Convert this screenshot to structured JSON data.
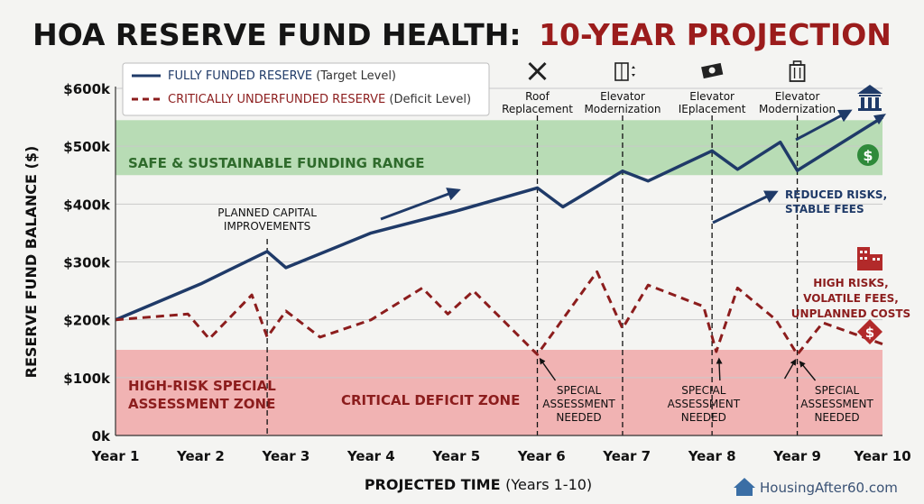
{
  "title": {
    "part1": "HOA RESERVE FUND HEALTH:",
    "part2": "10-YEAR PROJECTION",
    "color_part1": "#151515",
    "color_part2": "#9b1c1c"
  },
  "watermark": "HousingAfter60.com",
  "colors": {
    "fully_funded": "#1f3a68",
    "underfunded": "#8c1d1d",
    "safe_band": "#a9d6a5",
    "risk_band": "#f0a3a3",
    "safe_text": "#2f6b2c",
    "risk_text": "#8c1d1d",
    "annotation_blue": "#1f3a68",
    "grid": "#c9c9c9"
  },
  "chart_data": {
    "type": "line",
    "title": "HOA RESERVE FUND HEALTH: 10-YEAR PROJECTION",
    "xlabel": "PROJECTED TIME",
    "xlabel_suffix": "(Years 1-10)",
    "ylabel": "RESERVE FUND BALANCE ($)",
    "ylim": [
      0,
      600000
    ],
    "y_ticks": [
      {
        "value": 0,
        "label": "0k"
      },
      {
        "value": 100000,
        "label": "$100k"
      },
      {
        "value": 200000,
        "label": "$200k"
      },
      {
        "value": 300000,
        "label": "$300k"
      },
      {
        "value": 400000,
        "label": "$400k"
      },
      {
        "value": 500000,
        "label": "$500k"
      },
      {
        "value": 600000,
        "label": "$600k"
      }
    ],
    "xlim": [
      1,
      10
    ],
    "x_ticks": [
      {
        "value": 1,
        "label": "Year 1"
      },
      {
        "value": 2,
        "label": "Year 2"
      },
      {
        "value": 3,
        "label": "Year 3"
      },
      {
        "value": 4,
        "label": "Year 4"
      },
      {
        "value": 5,
        "label": "Year 5"
      },
      {
        "value": 6,
        "label": "Year 6"
      },
      {
        "value": 7,
        "label": "Year 7"
      },
      {
        "value": 8,
        "label": "Year 8"
      },
      {
        "value": 9,
        "label": "Year 9"
      },
      {
        "value": 10,
        "label": "Year 10"
      }
    ],
    "grid": true,
    "legend_position": "top-left",
    "legend": [
      {
        "main": "FULLY FUNDED RESERVE",
        "sub": "(Target Level)",
        "style": "solid"
      },
      {
        "main": "CRITICALLY UNDERFUNDED RESERVE",
        "sub": "(Deficit Level)",
        "style": "dashed"
      }
    ],
    "series": [
      {
        "name": "FULLY FUNDED RESERVE",
        "style": "solid",
        "points": [
          [
            1.0,
            200000
          ],
          [
            2.0,
            262000
          ],
          [
            2.78,
            318000
          ],
          [
            3.0,
            290000
          ],
          [
            4.0,
            350000
          ],
          [
            5.0,
            388000
          ],
          [
            5.95,
            428000
          ],
          [
            6.25,
            395000
          ],
          [
            6.95,
            457000
          ],
          [
            7.25,
            440000
          ],
          [
            8.0,
            492000
          ],
          [
            8.3,
            460000
          ],
          [
            8.8,
            507000
          ],
          [
            9.0,
            458000
          ],
          [
            10.0,
            550000
          ]
        ]
      },
      {
        "name": "CRITICALLY UNDERFUNDED RESERVE",
        "style": "dashed",
        "points": [
          [
            1.0,
            200000
          ],
          [
            1.85,
            210000
          ],
          [
            2.1,
            167000
          ],
          [
            2.6,
            243000
          ],
          [
            2.78,
            170000
          ],
          [
            3.0,
            215000
          ],
          [
            3.4,
            170000
          ],
          [
            4.0,
            200000
          ],
          [
            4.6,
            255000
          ],
          [
            4.9,
            210000
          ],
          [
            5.2,
            250000
          ],
          [
            5.95,
            140000
          ],
          [
            6.65,
            283000
          ],
          [
            6.95,
            185000
          ],
          [
            7.25,
            260000
          ],
          [
            7.9,
            223000
          ],
          [
            8.05,
            145000
          ],
          [
            8.3,
            255000
          ],
          [
            8.75,
            200000
          ],
          [
            9.0,
            140000
          ],
          [
            9.3,
            195000
          ],
          [
            10.0,
            158000
          ]
        ]
      }
    ],
    "bands": [
      {
        "label": "SAFE & SUSTAINABLE FUNDING RANGE",
        "from": 450000,
        "to": 545000
      },
      {
        "label_lines": [
          "HIGH-RISK SPECIAL",
          "ASSESSMENT ZONE"
        ],
        "from": 0,
        "to": 148000
      },
      {
        "label": "CRITICAL DEFICIT ZONE"
      }
    ],
    "events": [
      {
        "x": 2.78,
        "label_lines": [
          "PLANNED CAPITAL",
          "IMPROVEMENTS"
        ]
      },
      {
        "x": 5.95,
        "label_lines": [
          "Roof",
          "Replacement"
        ],
        "icon": "wrench-screwdriver-icon"
      },
      {
        "x": 6.95,
        "label_lines": [
          "Elevator",
          "Modernization"
        ],
        "icon": "elevator-icon"
      },
      {
        "x": 8.0,
        "label_lines": [
          "Elevator",
          "IEplacement"
        ],
        "icon": "cash-icon"
      },
      {
        "x": 9.0,
        "label_lines": [
          "Elevator",
          "Modernization"
        ],
        "icon": "toolbox-icon"
      }
    ],
    "special_assessments": [
      {
        "x": 5.95,
        "label_lines": [
          "SPECIAL",
          "ASSESSMENT",
          "NEEDED"
        ]
      },
      {
        "x": 8.05,
        "label_lines": [
          "SPECIAL",
          "ASSESSMENT",
          "NEEDED"
        ]
      },
      {
        "x": 9.0,
        "label_lines": [
          "SPECIAL",
          "ASSESSMENT",
          "NEEDED"
        ]
      }
    ],
    "annotations": [
      {
        "label_lines": [
          "REDUCED RISKS,",
          "STABLE FEES"
        ],
        "color": "blue"
      },
      {
        "label_lines": [
          "HIGH RISKS,",
          "VOLATILE FEES,",
          "UNPLANNED COSTS"
        ],
        "color": "red"
      }
    ]
  }
}
